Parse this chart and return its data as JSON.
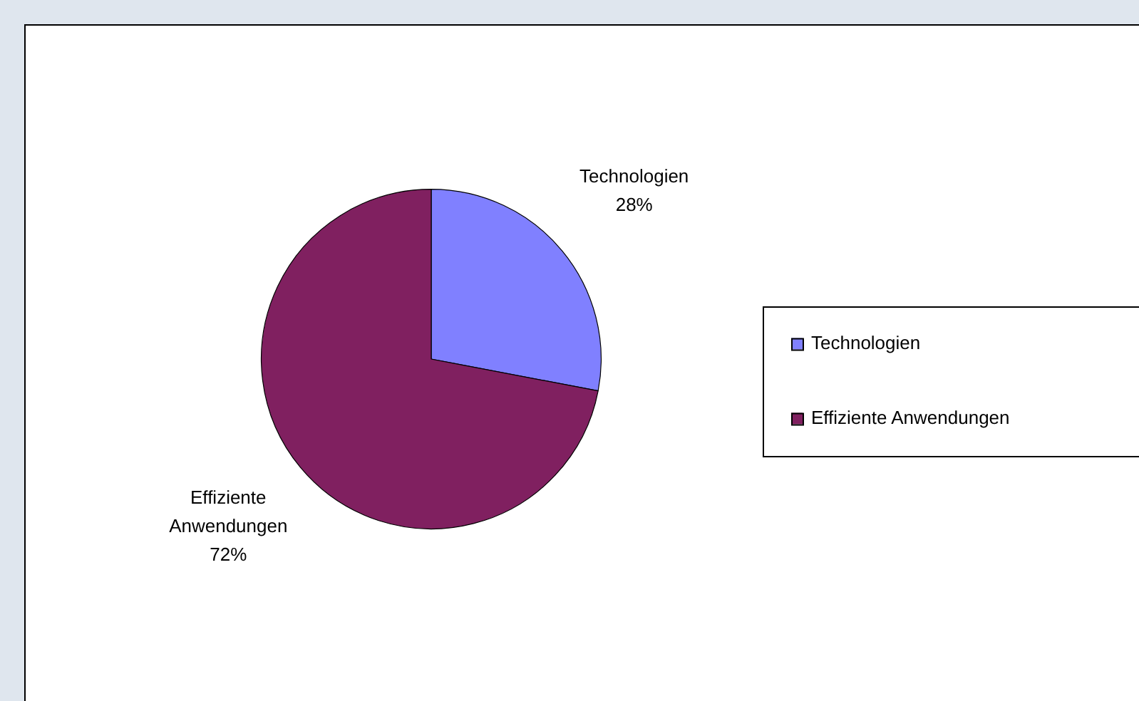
{
  "chart_data": {
    "type": "pie",
    "categories": [
      "Technologien",
      "Effiziente Anwendungen"
    ],
    "values": [
      28,
      72
    ],
    "colors": [
      "#8080ff",
      "#802060"
    ],
    "value_labels": [
      "28%",
      "72%"
    ],
    "legend": "right"
  }
}
